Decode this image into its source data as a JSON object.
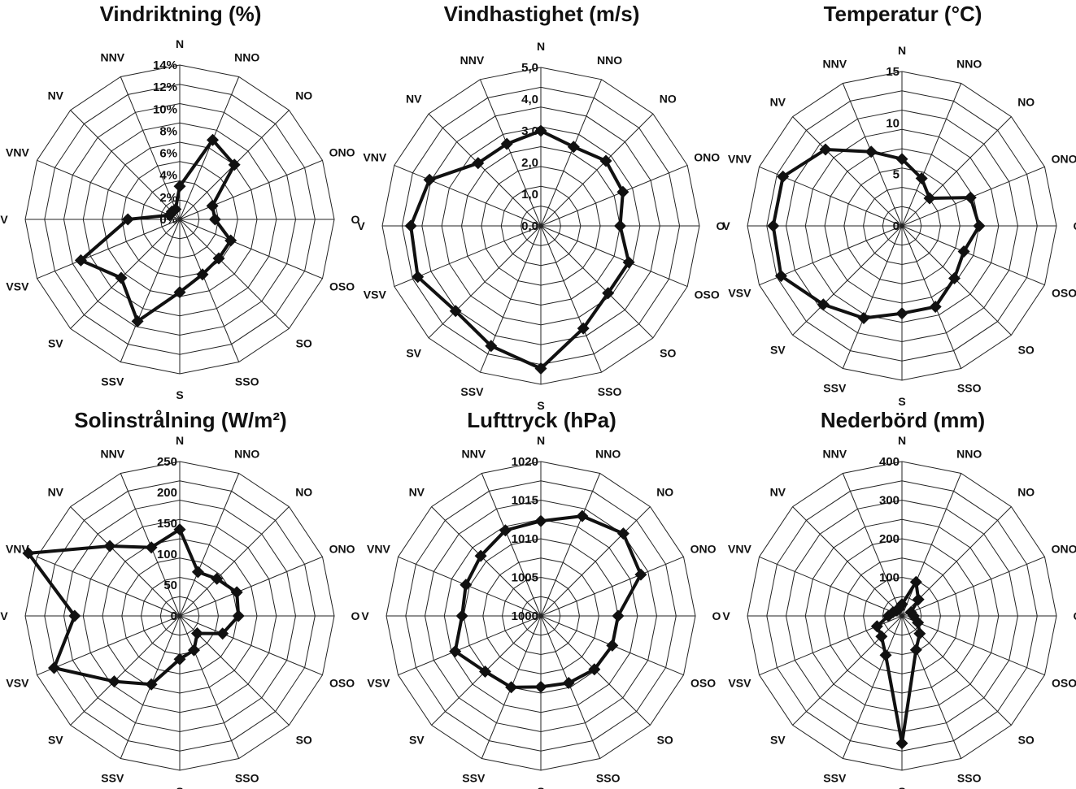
{
  "chart_data": [
    {
      "type": "radar",
      "title": "Vindriktning (%)",
      "categories": [
        "N",
        "NNO",
        "NO",
        "ONO",
        "O",
        "OSO",
        "SO",
        "SSO",
        "S",
        "SSV",
        "SV",
        "VSV",
        "V",
        "VNV",
        "NV",
        "NNV"
      ],
      "ticks": [
        "0%",
        "2%",
        "4%",
        "6%",
        "8%",
        "10%",
        "12%",
        "14%"
      ],
      "rmax": 14,
      "series": [
        {
          "values": [
            3.0,
            7.8,
            7.0,
            3.2,
            3.2,
            5.0,
            5.0,
            5.4,
            6.6,
            10.0,
            7.5,
            9.7,
            4.7,
            1.0,
            1.0,
            1.0
          ]
        }
      ]
    },
    {
      "type": "radar",
      "title": "Vindhastighet (m/s)",
      "categories": [
        "N",
        "NNO",
        "NO",
        "ONO",
        "O",
        "OSO",
        "SO",
        "SSO",
        "S",
        "SSV",
        "SV",
        "VSV",
        "V",
        "VNV",
        "NV",
        "NNV"
      ],
      "ticks": [
        "0,0",
        "1,0",
        "2,0",
        "3,0",
        "4,0",
        "5,0"
      ],
      "rmax": 5,
      "series": [
        {
          "values": [
            3.0,
            2.7,
            2.9,
            2.8,
            2.5,
            3.0,
            3.0,
            3.5,
            4.5,
            4.1,
            3.8,
            4.2,
            4.1,
            3.8,
            2.8,
            2.8
          ]
        }
      ]
    },
    {
      "type": "radar",
      "title": "Temperatur (°C)",
      "categories": [
        "N",
        "NNO",
        "NO",
        "ONO",
        "O",
        "OSO",
        "SO",
        "SSO",
        "S",
        "SSV",
        "SV",
        "VSV",
        "V",
        "VNV",
        "NV",
        "NNV"
      ],
      "ticks": [
        "0",
        "5",
        "10",
        "15"
      ],
      "rmax": 15,
      "series": [
        {
          "values": [
            6.5,
            5.0,
            3.8,
            7.2,
            7.5,
            6.5,
            7.2,
            8.5,
            8.5,
            9.7,
            10.8,
            12.7,
            12.5,
            12.5,
            10.5,
            7.8
          ]
        }
      ]
    },
    {
      "type": "radar",
      "title": "Solinstrålning (W/m²)",
      "categories": [
        "N",
        "NNO",
        "NO",
        "ONO",
        "O",
        "OSO",
        "SO",
        "SSO",
        "S",
        "SSV",
        "SV",
        "VSV",
        "V",
        "VNV",
        "NV",
        "NNV"
      ],
      "ticks": [
        "0",
        "50",
        "100",
        "150",
        "200",
        "250"
      ],
      "rmax": 250,
      "series": [
        {
          "values": [
            140,
            77,
            85,
            100,
            95,
            75,
            40,
            60,
            70,
            120,
            150,
            220,
            170,
            265,
            160,
            120
          ]
        }
      ]
    },
    {
      "type": "radar",
      "title": "Lufttryck (hPa)",
      "categories": [
        "N",
        "NNO",
        "NO",
        "ONO",
        "O",
        "OSO",
        "SO",
        "SSO",
        "S",
        "SSV",
        "SV",
        "VSV",
        "V",
        "VNV",
        "NV",
        "NNV"
      ],
      "ticks": [
        "1000",
        "1005",
        "1010",
        "1015",
        "1020"
      ],
      "rmin": 1000,
      "rmax": 1020,
      "series": [
        {
          "values": [
            1012.3,
            1014.0,
            1015.1,
            1014.0,
            1010.0,
            1010.0,
            1009.8,
            1009.4,
            1009.2,
            1010.0,
            1010.2,
            1012.0,
            1010.2,
            1010.5,
            1011.0,
            1012.0
          ]
        }
      ]
    },
    {
      "type": "radar",
      "title": "Nederbörd (mm)",
      "categories": [
        "N",
        "NNO",
        "NO",
        "ONO",
        "O",
        "OSO",
        "SO",
        "SSO",
        "S",
        "SSV",
        "SV",
        "VSV",
        "V",
        "VNV",
        "NV",
        "NNV"
      ],
      "ticks": [
        "100",
        "200",
        "300",
        "400"
      ],
      "rmax": 400,
      "series": [
        {
          "values": [
            30,
            95,
            60,
            25,
            30,
            45,
            65,
            95,
            330,
            110,
            75,
            70,
            35,
            25,
            20,
            20
          ]
        }
      ]
    }
  ]
}
